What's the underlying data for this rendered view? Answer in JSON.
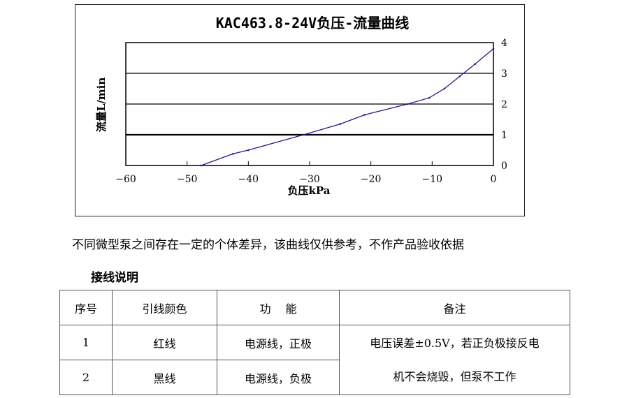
{
  "chart_data": {
    "type": "line",
    "title": "KAC463.8-24V负压-流量曲线",
    "xlabel": "负压kPa",
    "ylabel": "流量L/min",
    "xlim": [
      -60,
      0
    ],
    "ylim": [
      0,
      4
    ],
    "x_ticks": [
      "-60",
      "-50",
      "-40",
      "-30",
      "-20",
      "-10",
      "0"
    ],
    "y_ticks": [
      "0",
      "1",
      "2",
      "3",
      "4"
    ],
    "y_axis_side": "right",
    "grid": "horizontal",
    "series": [
      {
        "color": "#1a1a9c",
        "x": [
          -47.7,
          -42.5,
          -40,
          -31,
          -25,
          -21,
          -14,
          -10.5,
          -8,
          -5.5,
          -3,
          0
        ],
        "y": [
          0,
          0.38,
          0.5,
          1.0,
          1.35,
          1.65,
          2.0,
          2.2,
          2.5,
          2.9,
          3.3,
          3.8
        ]
      }
    ]
  },
  "note": "不同微型泵之间存在一定的个体差异，该曲线仅供参考，不作产品验收依据",
  "section_title": "接线说明",
  "table": {
    "headers": [
      "序号",
      "引线颜色",
      "功　 能",
      "备注"
    ],
    "rows": [
      [
        "1",
        "红线",
        "电源线，正极"
      ],
      [
        "2",
        "黑线",
        "电源线，负极"
      ]
    ],
    "remark_line1": "电压误差±0.5V，若正负极接反电",
    "remark_line2": "机不会烧毁，但泵不工作"
  }
}
